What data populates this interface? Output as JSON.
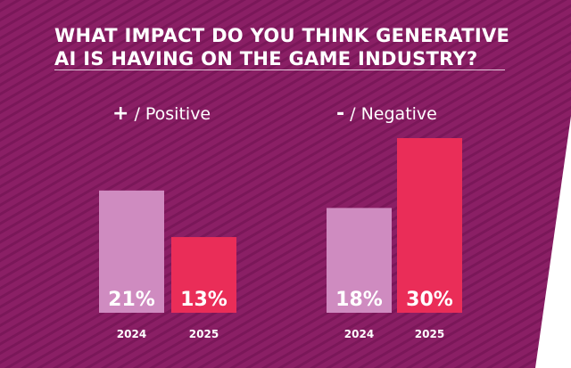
{
  "colors": {
    "background": "#8a1f65",
    "stripe": "#7a1759",
    "bar_2024": "#cf8bc0",
    "bar_2025": "#ea2d58",
    "text": "#ffffff"
  },
  "chart_data": {
    "type": "bar",
    "title": "WHAT IMPACT DO YOU THINK GENERATIVE AI IS HAVING ON THE GAME INDUSTRY?",
    "title_lines": [
      "WHAT IMPACT DO YOU THINK GENERATIVE",
      "AI IS HAVING ON THE GAME INDUSTRY?"
    ],
    "unit": "%",
    "ylim": [
      0,
      30
    ],
    "groups": [
      {
        "sign": "+",
        "sign_icon": "plus-icon",
        "label": "/ Positive",
        "bars": [
          {
            "category": "2024",
            "value": 21,
            "display": "21%"
          },
          {
            "category": "2025",
            "value": 13,
            "display": "13%"
          }
        ]
      },
      {
        "sign": "-",
        "sign_icon": "minus-icon",
        "label": "/ Negative",
        "bars": [
          {
            "category": "2024",
            "value": 18,
            "display": "18%"
          },
          {
            "category": "2025",
            "value": 30,
            "display": "30%"
          }
        ]
      }
    ]
  }
}
